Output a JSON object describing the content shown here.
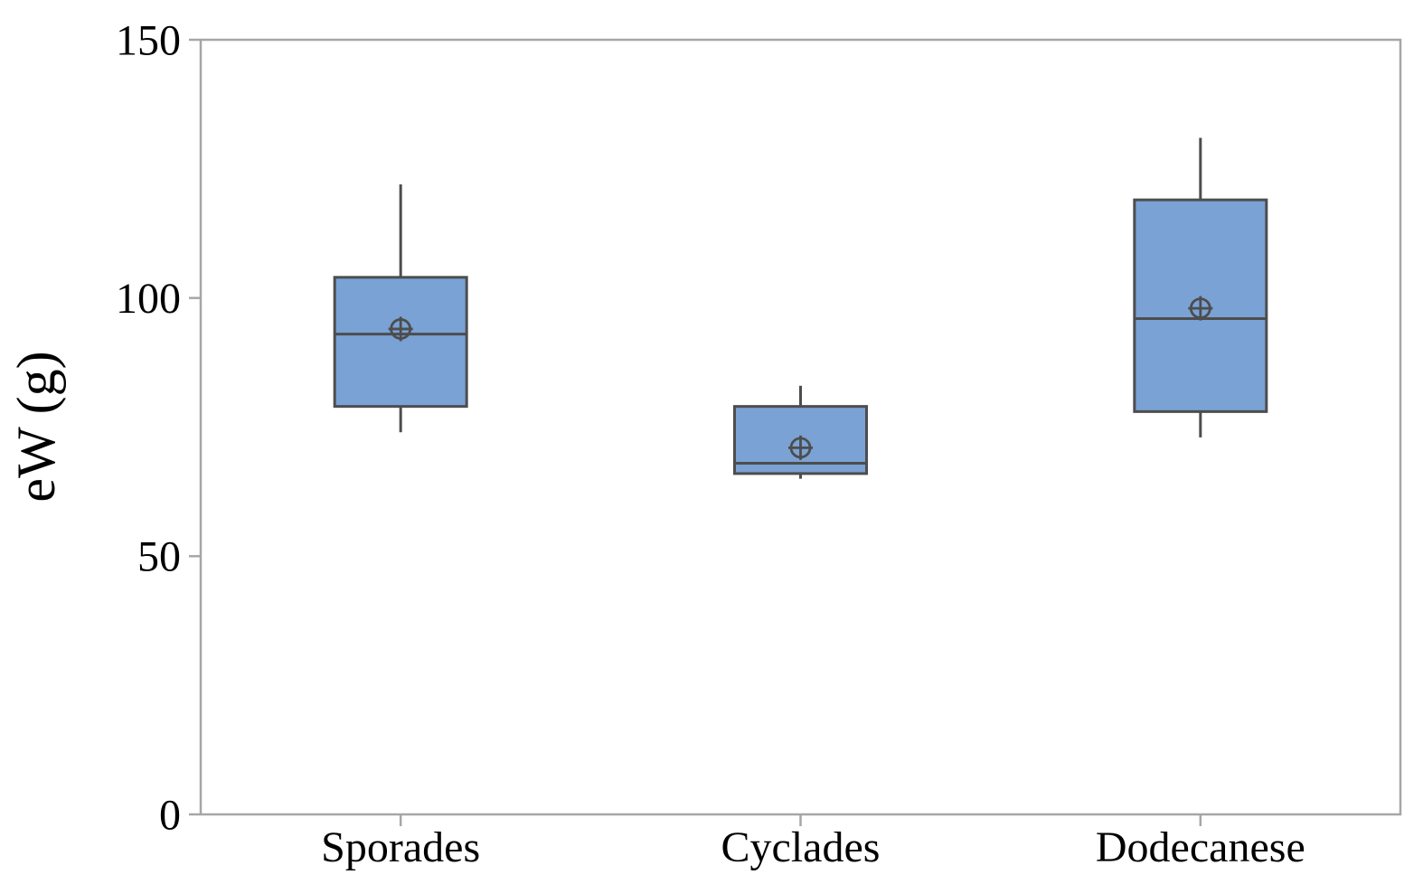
{
  "chart_data": {
    "type": "boxplot",
    "title": "",
    "xlabel": "",
    "ylabel": "eW (g)",
    "ylim": [
      0,
      150
    ],
    "yticks": [
      0,
      50,
      100,
      150
    ],
    "grid": false,
    "legend": "none",
    "categories": [
      "Sporades",
      "Cyclades",
      "Dodecanese"
    ],
    "series": [
      {
        "name": "Sporades",
        "min": 74,
        "q1": 79,
        "median": 93,
        "mean": 94,
        "q3": 104,
        "max": 122
      },
      {
        "name": "Cyclades",
        "min": 65,
        "q1": 66,
        "median": 68,
        "mean": 71,
        "q3": 79,
        "max": 83
      },
      {
        "name": "Dodecanese",
        "min": 73,
        "q1": 78,
        "median": 96,
        "mean": 98,
        "q3": 119,
        "max": 131
      }
    ],
    "colors": {
      "box_fill": "#7AA2D5",
      "box_border": "#4D4D4D",
      "whisker": "#4D4D4D",
      "median": "#4D4D4D",
      "mean_marker": "#4D4D4D",
      "frame": "#A6A6A6",
      "tick": "#A6A6A6",
      "text": "#000000",
      "background": "#FFFFFF"
    }
  }
}
